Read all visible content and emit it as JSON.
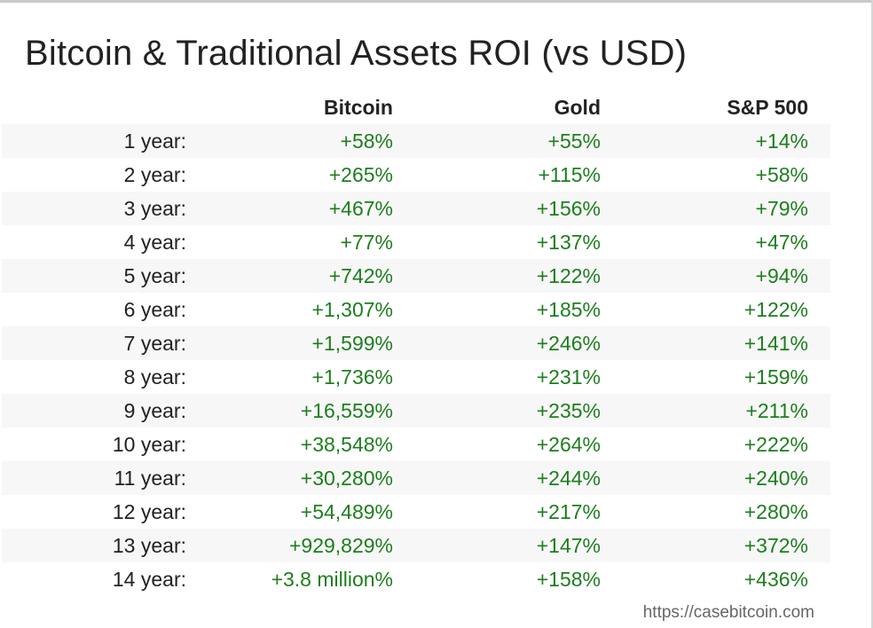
{
  "title": "Bitcoin & Traditional Assets ROI (vs USD)",
  "columns": [
    "Bitcoin",
    "Gold",
    "S&P 500"
  ],
  "rows": [
    {
      "label": "1 year:",
      "bitcoin": "+58%",
      "gold": "+55%",
      "sp500": "+14%"
    },
    {
      "label": "2 year:",
      "bitcoin": "+265%",
      "gold": "+115%",
      "sp500": "+58%"
    },
    {
      "label": "3 year:",
      "bitcoin": "+467%",
      "gold": "+156%",
      "sp500": "+79%"
    },
    {
      "label": "4 year:",
      "bitcoin": "+77%",
      "gold": "+137%",
      "sp500": "+47%"
    },
    {
      "label": "5 year:",
      "bitcoin": "+742%",
      "gold": "+122%",
      "sp500": "+94%"
    },
    {
      "label": "6 year:",
      "bitcoin": "+1,307%",
      "gold": "+185%",
      "sp500": "+122%"
    },
    {
      "label": "7 year:",
      "bitcoin": "+1,599%",
      "gold": "+246%",
      "sp500": "+141%"
    },
    {
      "label": "8 year:",
      "bitcoin": "+1,736%",
      "gold": "+231%",
      "sp500": "+159%"
    },
    {
      "label": "9 year:",
      "bitcoin": "+16,559%",
      "gold": "+235%",
      "sp500": "+211%"
    },
    {
      "label": "10 year:",
      "bitcoin": "+38,548%",
      "gold": "+264%",
      "sp500": "+222%"
    },
    {
      "label": "11 year:",
      "bitcoin": "+30,280%",
      "gold": "+244%",
      "sp500": "+240%"
    },
    {
      "label": "12 year:",
      "bitcoin": "+54,489%",
      "gold": "+217%",
      "sp500": "+280%"
    },
    {
      "label": "13 year:",
      "bitcoin": "+929,829%",
      "gold": "+147%",
      "sp500": "+372%"
    },
    {
      "label": "14 year:",
      "bitcoin": "+3.8 million%",
      "gold": "+158%",
      "sp500": "+436%"
    }
  ],
  "source": "https://casebitcoin.com",
  "colors": {
    "positive": "#1e7e1e",
    "text": "#222222",
    "stripe": "#f7f7f7"
  }
}
